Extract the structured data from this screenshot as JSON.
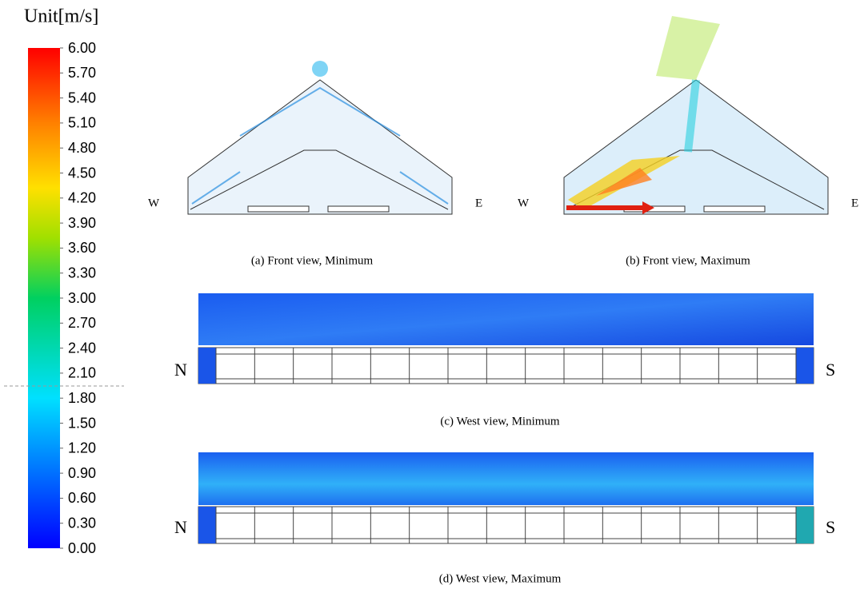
{
  "legend": {
    "title": "Unit[m/s]",
    "range": [
      0,
      6
    ],
    "ticks": [
      {
        "value": 6,
        "label": "6.00"
      },
      {
        "value": 5.7,
        "label": "5.70"
      },
      {
        "value": 5.4,
        "label": "5.40"
      },
      {
        "value": 5.1,
        "label": "5.10"
      },
      {
        "value": 4.8,
        "label": "4.80"
      },
      {
        "value": 4.5,
        "label": "4.50"
      },
      {
        "value": 4.2,
        "label": "4.20"
      },
      {
        "value": 3.9,
        "label": "3.90"
      },
      {
        "value": 3.6,
        "label": "3.60"
      },
      {
        "value": 3.3,
        "label": "3.30"
      },
      {
        "value": 3,
        "label": "3.00"
      },
      {
        "value": 2.7,
        "label": "2.70"
      },
      {
        "value": 2.4,
        "label": "2.40"
      },
      {
        "value": 2.1,
        "label": "2.10"
      },
      {
        "value": 1.8,
        "label": "1.80"
      },
      {
        "value": 1.5,
        "label": "1.50"
      },
      {
        "value": 1.2,
        "label": "1.20"
      },
      {
        "value": 0.9,
        "label": "0.90"
      },
      {
        "value": 0.6,
        "label": "0.60"
      },
      {
        "value": 0.3,
        "label": "0.30"
      },
      {
        "value": 0,
        "label": "0.00"
      }
    ]
  },
  "panels": [
    {
      "caption": "(a) Front view, Minimum",
      "labels": [
        "W",
        "E"
      ]
    },
    {
      "caption": "(b) Front view, Maximum",
      "labels": [
        "W",
        "E"
      ]
    },
    {
      "caption": "(c) West view, Minimum",
      "labels": [
        "N",
        "S"
      ]
    },
    {
      "caption": "(d) West view, Maximum",
      "labels": [
        "N",
        "S"
      ]
    }
  ]
}
